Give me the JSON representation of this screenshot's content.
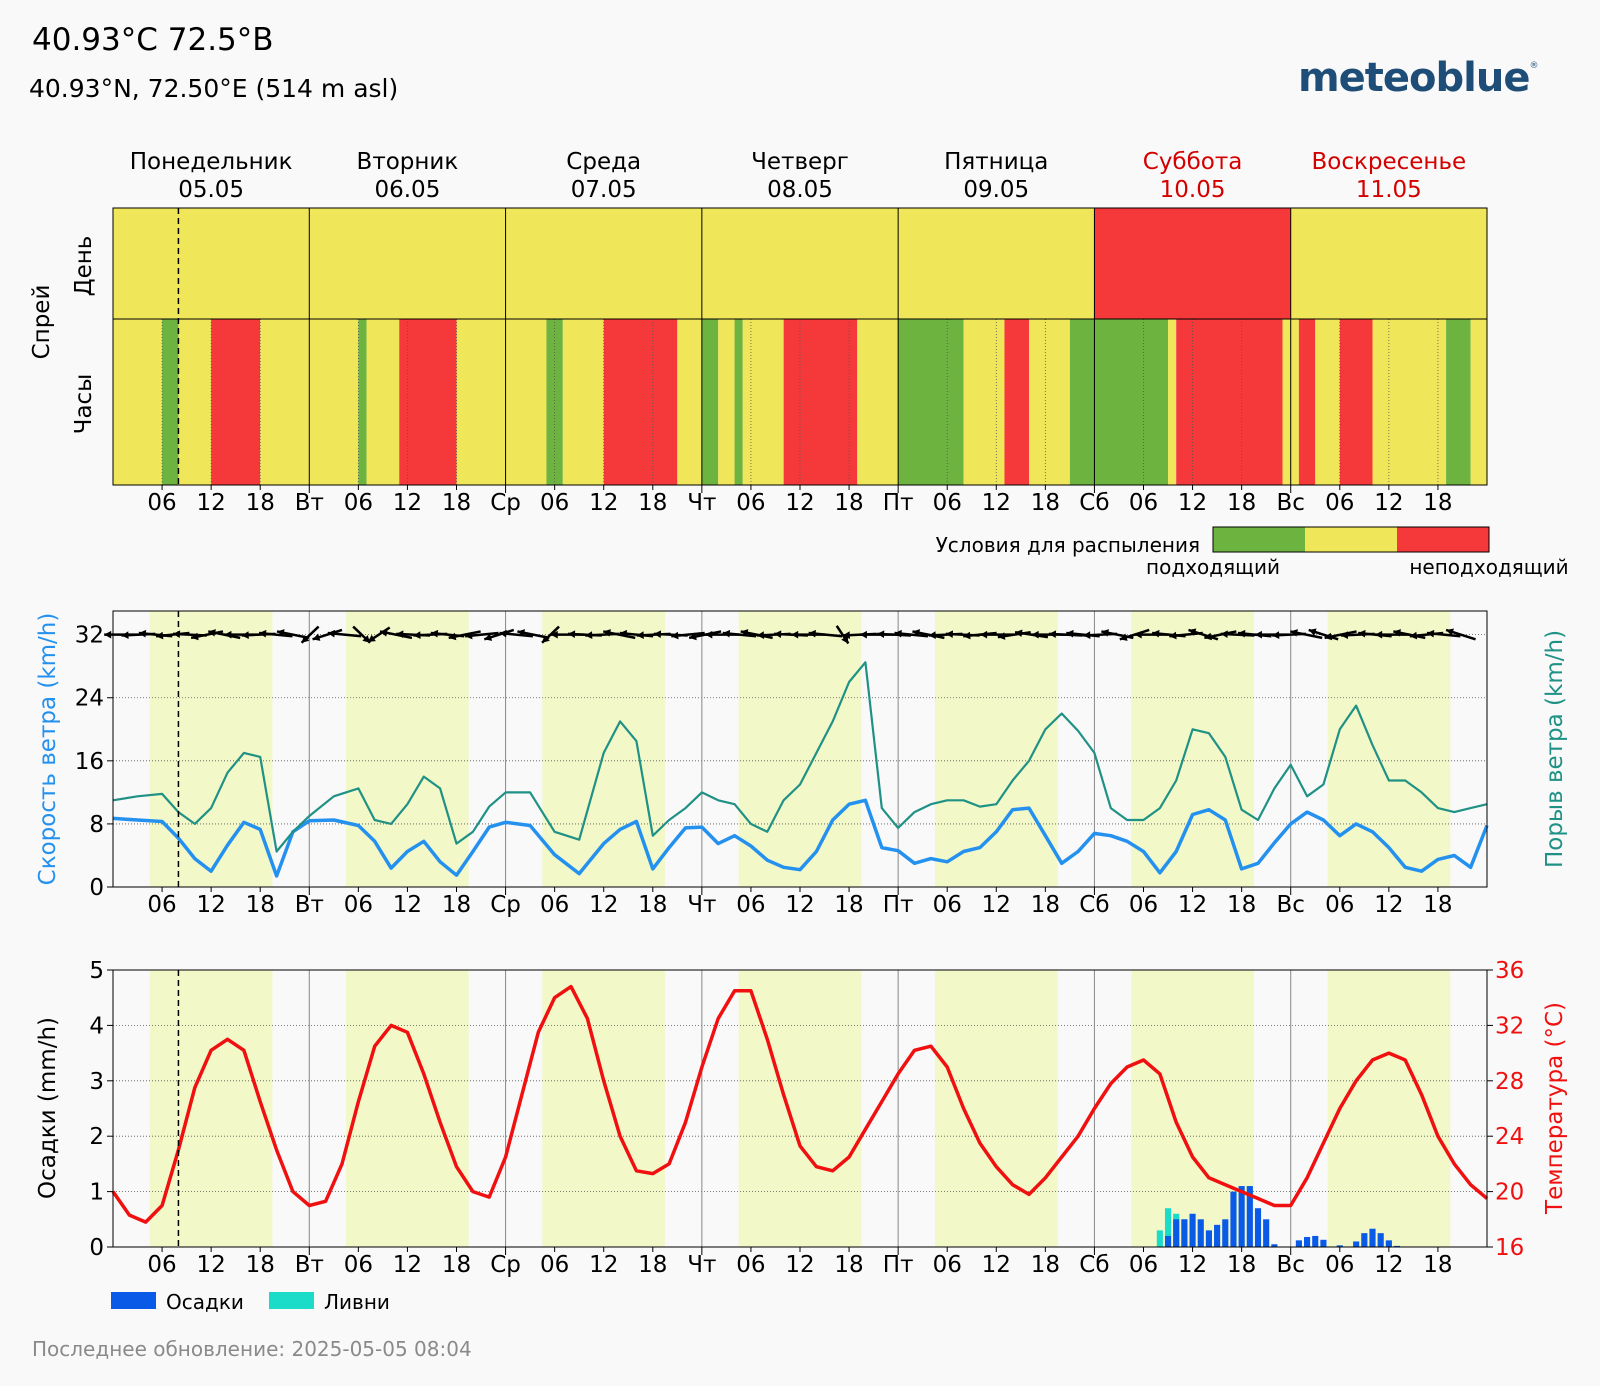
{
  "header": {
    "title": "40.93°C 72.5°B",
    "subtitle": "40.93°N, 72.50°E (514 m asl)",
    "logo_text": "meteoblue",
    "logo_mark": "®",
    "last_update": "Последнее обновление: 2025-05-05 08:04"
  },
  "days": [
    {
      "name": "Понедельник",
      "date": "05.05",
      "weekend": false
    },
    {
      "name": "Вторник",
      "date": "06.05",
      "weekend": false
    },
    {
      "name": "Среда",
      "date": "07.05",
      "weekend": false
    },
    {
      "name": "Четверг",
      "date": "08.05",
      "weekend": false
    },
    {
      "name": "Пятница",
      "date": "09.05",
      "weekend": false
    },
    {
      "name": "Суббота",
      "date": "10.05",
      "weekend": true
    },
    {
      "name": "Воскресенье",
      "date": "11.05",
      "weekend": true
    }
  ],
  "x_tick_labels": [
    "06",
    "12",
    "18",
    "Вт",
    "06",
    "12",
    "18",
    "Ср",
    "06",
    "12",
    "18",
    "Чт",
    "06",
    "12",
    "18",
    "Пт",
    "06",
    "12",
    "18",
    "Сб",
    "06",
    "12",
    "18",
    "Вс",
    "06",
    "12",
    "18"
  ],
  "colors": {
    "good": "#6db33f",
    "medium": "#f0e65a",
    "bad": "#f5383a",
    "wind": "#2491ef",
    "gust": "#1f9185",
    "temp": "#f01010",
    "precip": "#0a5ae8",
    "showers": "#1adcc8",
    "daylight": "#f2f8c8",
    "weekend_text": "#d40000"
  },
  "spray_panel": {
    "group_label": "Спрей",
    "row_day_label": "День",
    "row_hours_label": "Часы",
    "legend_title": "Условия для распыления",
    "legend_good": "подходящий",
    "legend_bad": "неподходящий"
  },
  "chart_data": [
    {
      "type": "heatmap",
      "title": "Спрей",
      "x_unit": "hours from 05.05 00:00",
      "categories": [
        "good",
        "medium",
        "bad"
      ],
      "day_rating": [
        "medium",
        "medium",
        "medium",
        "medium",
        "medium",
        "bad",
        "medium"
      ],
      "hour_segments": [
        [
          0,
          6,
          "medium"
        ],
        [
          6,
          8,
          "good"
        ],
        [
          8,
          12,
          "medium"
        ],
        [
          12,
          18,
          "bad"
        ],
        [
          18,
          30,
          "medium"
        ],
        [
          30,
          31,
          "good"
        ],
        [
          31,
          35,
          "medium"
        ],
        [
          35,
          42,
          "bad"
        ],
        [
          42,
          53,
          "medium"
        ],
        [
          53,
          55,
          "good"
        ],
        [
          55,
          60,
          "medium"
        ],
        [
          60,
          69,
          "bad"
        ],
        [
          69,
          72,
          "medium"
        ],
        [
          72,
          74,
          "good"
        ],
        [
          74,
          76,
          "medium"
        ],
        [
          76,
          77,
          "good"
        ],
        [
          77,
          82,
          "medium"
        ],
        [
          82,
          91,
          "bad"
        ],
        [
          91,
          96,
          "medium"
        ],
        [
          96,
          104,
          "good"
        ],
        [
          104,
          109,
          "medium"
        ],
        [
          109,
          112,
          "bad"
        ],
        [
          112,
          117,
          "medium"
        ],
        [
          117,
          129,
          "good"
        ],
        [
          129,
          130,
          "medium"
        ],
        [
          130,
          143,
          "bad"
        ],
        [
          143,
          144,
          "medium"
        ],
        [
          144,
          145,
          "medium"
        ],
        [
          145,
          147,
          "bad"
        ],
        [
          147,
          150,
          "medium"
        ],
        [
          150,
          154,
          "bad"
        ],
        [
          154,
          163,
          "medium"
        ],
        [
          163,
          166,
          "good"
        ],
        [
          166,
          168,
          "medium"
        ]
      ]
    },
    {
      "type": "line",
      "x_unit": "hours from 05.05 00:00",
      "ylabel": "Скорость ветра (km/h)",
      "y2label": "Порыв ветра (km/h)",
      "ylim": [
        0,
        35
      ],
      "yticks": [
        0,
        8,
        16,
        24,
        32
      ],
      "grid": true,
      "x": [
        0,
        3,
        6,
        8,
        10,
        12,
        14,
        16,
        18,
        20,
        22,
        24,
        27,
        30,
        32,
        34,
        36,
        38,
        40,
        42,
        44,
        46,
        48,
        51,
        54,
        57,
        60,
        62,
        64,
        66,
        68,
        70,
        72,
        74,
        76,
        78,
        80,
        82,
        84,
        86,
        88,
        90,
        92,
        94,
        96,
        98,
        100,
        102,
        104,
        106,
        108,
        110,
        112,
        114,
        116,
        118,
        120,
        122,
        124,
        126,
        128,
        130,
        132,
        134,
        136,
        138,
        140,
        142,
        144,
        146,
        148,
        150,
        152,
        154,
        156,
        158,
        160,
        162,
        164,
        166,
        168
      ],
      "series": [
        {
          "name": "Скорость ветра",
          "color": "#2491ef",
          "values": [
            8.7,
            8.5,
            8.3,
            6.2,
            3.6,
            2,
            5.3,
            8.2,
            7.3,
            1.4,
            7,
            8.4,
            8.5,
            7.8,
            5.8,
            2.4,
            4.5,
            5.8,
            3.2,
            1.5,
            4.5,
            7.6,
            8.2,
            7.8,
            4.1,
            1.7,
            5.5,
            7.3,
            8.3,
            2.3,
            5,
            7.5,
            7.6,
            5.5,
            6.5,
            5.2,
            3.4,
            2.5,
            2.2,
            4.5,
            8.5,
            10.5,
            11,
            5,
            4.6,
            3,
            3.6,
            3.2,
            4.5,
            5,
            7,
            9.8,
            10,
            6.5,
            3,
            4.5,
            6.8,
            6.5,
            5.8,
            4.5,
            1.8,
            4.5,
            9.2,
            9.8,
            8.5,
            2.3,
            3,
            5.6,
            8,
            9.5,
            8.5,
            6.5,
            8,
            7,
            5,
            2.5,
            2,
            3.5,
            4,
            2.5,
            7.8
          ]
        },
        {
          "name": "Порыв ветра",
          "color": "#1f9185",
          "values": [
            11,
            11.5,
            11.8,
            9.5,
            8,
            10,
            14.5,
            17,
            16.5,
            4.5,
            7,
            9,
            11.5,
            12.5,
            8.5,
            8,
            10.5,
            14,
            12.5,
            5.5,
            7,
            10.2,
            12,
            12,
            7,
            6,
            17,
            21,
            18.5,
            6.5,
            8.5,
            10,
            12,
            11,
            10.5,
            8,
            7,
            11,
            13,
            17,
            21,
            26,
            28.5,
            10,
            7.5,
            9.5,
            10.5,
            11,
            11,
            10.2,
            10.5,
            13.5,
            16,
            20,
            22,
            19.8,
            17,
            10,
            8.5,
            8.5,
            10,
            13.5,
            20,
            19.5,
            16.5,
            9.8,
            8.5,
            12.5,
            15.5,
            11.5,
            13,
            20,
            23,
            18,
            13.5,
            13.5,
            12,
            10,
            9.5,
            10,
            10.5
          ]
        }
      ],
      "wind_direction_row": "arrows at y = 32 (wind direction indicator)"
    },
    {
      "type": "line",
      "x_unit": "hours from 05.05 00:00",
      "ylabel": "Осадки (mm/h)",
      "y2label": "Температура (°C)",
      "ylim": [
        0,
        5
      ],
      "yticks": [
        0,
        1,
        2,
        3,
        4,
        5
      ],
      "y2lim": [
        16,
        36
      ],
      "y2ticks": [
        16,
        20,
        24,
        28,
        32,
        36
      ],
      "grid": true,
      "legend": [
        "Осадки",
        "Ливни"
      ],
      "legend_placement": "bottom-left",
      "series": [
        {
          "name": "Температура",
          "color": "#f01010",
          "x": [
            0,
            2,
            4,
            6,
            8,
            10,
            12,
            14,
            16,
            18,
            20,
            22,
            24,
            26,
            28,
            30,
            32,
            34,
            36,
            38,
            40,
            42,
            44,
            46,
            48,
            50,
            52,
            54,
            56,
            58,
            60,
            62,
            64,
            66,
            68,
            70,
            72,
            74,
            76,
            78,
            80,
            82,
            84,
            86,
            88,
            90,
            92,
            94,
            96,
            98,
            100,
            102,
            104,
            106,
            108,
            110,
            112,
            114,
            116,
            118,
            120,
            122,
            124,
            126,
            128,
            130,
            132,
            134,
            136,
            138,
            140,
            142,
            144,
            146,
            148,
            150,
            152,
            154,
            156,
            158,
            160,
            162,
            164,
            166,
            168
          ],
          "values": [
            20,
            18.3,
            17.8,
            19,
            23,
            27.5,
            30.2,
            31,
            30.2,
            26.5,
            23,
            20,
            19,
            19.3,
            22,
            26.5,
            30.5,
            32,
            31.5,
            28.5,
            25,
            21.8,
            20,
            19.6,
            22.5,
            27,
            31.5,
            34,
            34.8,
            32.5,
            28,
            24,
            21.5,
            21.3,
            22,
            25,
            29,
            32.5,
            34.5,
            34.5,
            31,
            27,
            23.3,
            21.8,
            21.5,
            22.5,
            24.5,
            26.5,
            28.5,
            30.2,
            30.5,
            29,
            26,
            23.5,
            21.8,
            20.5,
            19.8,
            21,
            22.5,
            24,
            26,
            27.8,
            29,
            29.5,
            28.5,
            25,
            22.5,
            21,
            20.5,
            20,
            19.5,
            19,
            19,
            21,
            23.5,
            26,
            28,
            29.5,
            30,
            29.5,
            27,
            24,
            22,
            20.5,
            19.5
          ]
        },
        {
          "name": "Осадки",
          "color": "#0a5ae8",
          "hours": [
            129,
            130,
            131,
            132,
            133,
            134,
            135,
            136,
            137,
            138,
            139,
            140,
            141,
            142,
            145,
            146,
            147,
            148,
            150,
            152,
            153,
            154,
            155,
            156,
            157
          ],
          "values": [
            0.2,
            0.5,
            0.5,
            0.6,
            0.5,
            0.3,
            0.4,
            0.5,
            1,
            1.1,
            1.1,
            0.7,
            0.5,
            0.05,
            0.12,
            0.18,
            0.2,
            0.13,
            0.03,
            0.1,
            0.25,
            0.33,
            0.25,
            0.12,
            0.02
          ]
        },
        {
          "name": "Ливни",
          "color": "#1adcc8",
          "hours": [
            128,
            129,
            130,
            131
          ],
          "values": [
            0.3,
            0.7,
            0.6,
            0.5
          ]
        }
      ]
    }
  ]
}
